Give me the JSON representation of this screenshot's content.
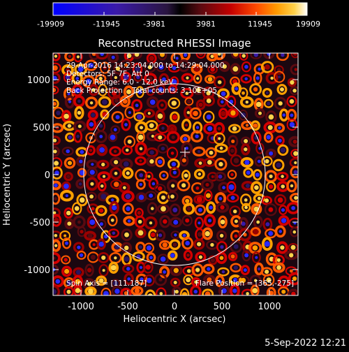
{
  "colorbar": {
    "ticks": [
      "-19909",
      "-11945",
      "-3981",
      "3981",
      "11945",
      "19909"
    ]
  },
  "plot": {
    "title": "Reconstructed RHESSI Image",
    "xlabel": "Heliocentric X (arcsec)",
    "ylabel": "Heliocentric Y (arcsec)",
    "x_ticks": [
      "-1000",
      "-500",
      "0",
      "500",
      "1000"
    ],
    "y_ticks": [
      "1000",
      "500",
      "0",
      "-500",
      "-1000"
    ],
    "info_lines": [
      "29-Apr-2016 14:23:04.000 to 14:29:04.000",
      "Detectors: 5F 7F, Att 0",
      "Energy Range: 6.0 - 12.0 keV",
      "Back Projection    Total counts: 3.10E+05"
    ],
    "spin_axis": "Spin Axis = [111.187]",
    "flare_position": "Flare Position = [365,-275]"
  },
  "footer": {
    "date": "5-Sep-2022 12:21"
  },
  "colors": {
    "background": "#000000",
    "colorbar": [
      "#0000ff",
      "#3a1aa8",
      "#2a1540",
      "#000000",
      "#5a0a10",
      "#c40000",
      "#ff4a00",
      "#ff9a00",
      "#ffd24a",
      "#ffffff"
    ],
    "limb": "#ffffff"
  }
}
